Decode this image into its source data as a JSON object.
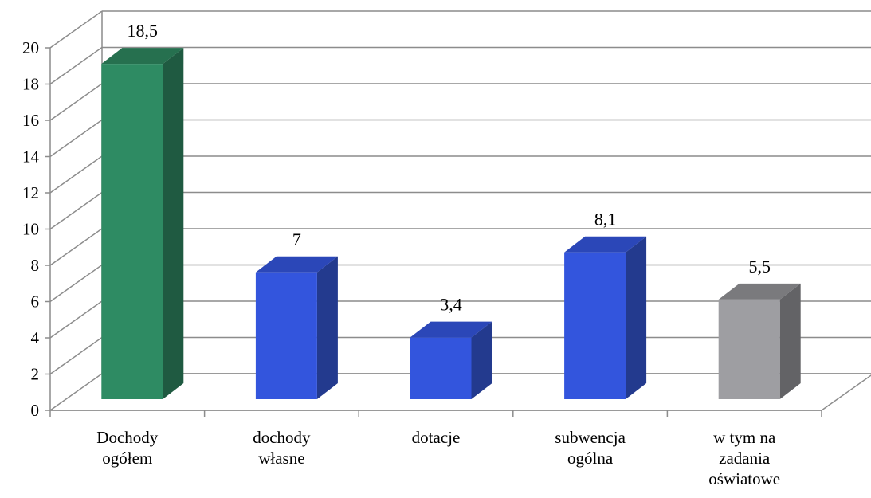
{
  "chart_data": {
    "type": "bar",
    "three_d": true,
    "categories": [
      [
        "Dochody",
        "ogółem"
      ],
      [
        "dochody",
        "własne"
      ],
      [
        "dotacje"
      ],
      [
        "subwencja",
        "ogólna"
      ],
      [
        "w tym na",
        "zadania",
        "oświatowe"
      ]
    ],
    "values": [
      18.5,
      7,
      3.4,
      8.1,
      5.5
    ],
    "value_labels": [
      "18,5",
      "7",
      "3,4",
      "8,1",
      "5,5"
    ],
    "bar_colors": [
      {
        "front": "#2E8B63",
        "side": "#1F5A41",
        "top": "#26704F"
      },
      {
        "front": "#3355DD",
        "side": "#233A8E",
        "top": "#2B47B8"
      },
      {
        "front": "#3355DD",
        "side": "#233A8E",
        "top": "#2B47B8"
      },
      {
        "front": "#3355DD",
        "side": "#233A8E",
        "top": "#2B47B8"
      },
      {
        "front": "#9E9EA2",
        "side": "#636366",
        "top": "#7A7A7D"
      }
    ],
    "ylim": [
      0,
      20
    ],
    "yticks": [
      0,
      2,
      4,
      6,
      8,
      10,
      12,
      14,
      16,
      18,
      20
    ],
    "grid": true,
    "legend": "none",
    "title": "",
    "xlabel": "",
    "ylabel": ""
  }
}
